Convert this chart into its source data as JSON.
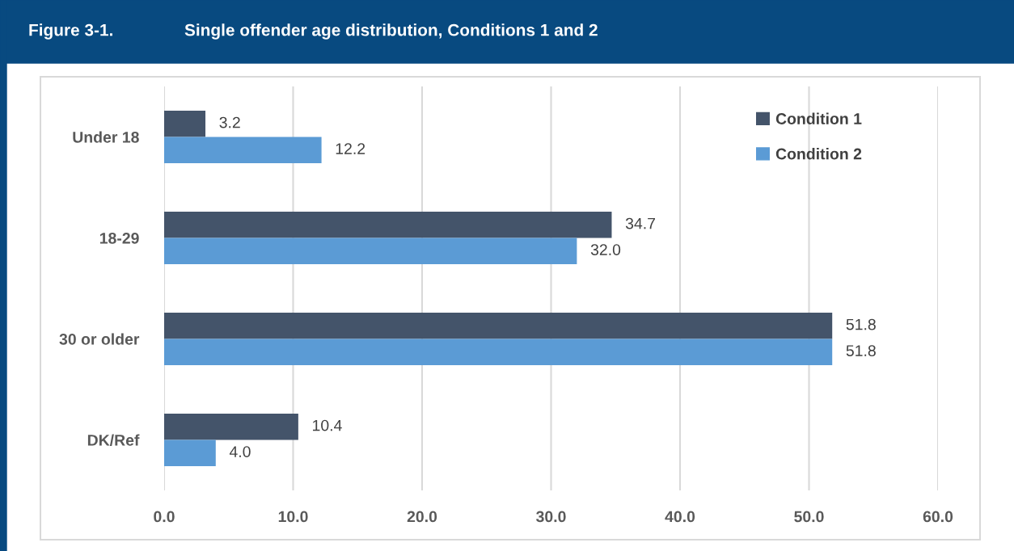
{
  "chart_data": {
    "type": "bar",
    "orientation": "horizontal",
    "title": "Figure 3-1.",
    "subtitle": "Single offender age distribution, Conditions 1 and 2",
    "categories": [
      "Under 18",
      "18-29",
      "30 or older",
      "DK/Ref"
    ],
    "series": [
      {
        "name": "Condition 1",
        "color": "#44546a",
        "values": [
          3.2,
          34.7,
          51.8,
          10.4
        ],
        "value_labels": [
          "3.2",
          "34.7",
          "51.8",
          "10.4"
        ]
      },
      {
        "name": "Condition 2",
        "color": "#5b9bd5",
        "values": [
          12.2,
          32.0,
          51.8,
          4.0
        ],
        "value_labels": [
          "12.2",
          "32.0",
          "51.8",
          "4.0"
        ]
      }
    ],
    "xlim": [
      0,
      60
    ],
    "xticks": [
      {
        "value": 0,
        "label": "0.0"
      },
      {
        "value": 10,
        "label": "10.0"
      },
      {
        "value": 20,
        "label": "20.0"
      },
      {
        "value": 30,
        "label": "30.0"
      },
      {
        "value": 40,
        "label": "40.0"
      },
      {
        "value": 50,
        "label": "50.0"
      },
      {
        "value": 60,
        "label": "60.0"
      }
    ],
    "grid": "x",
    "legend": "top right"
  }
}
